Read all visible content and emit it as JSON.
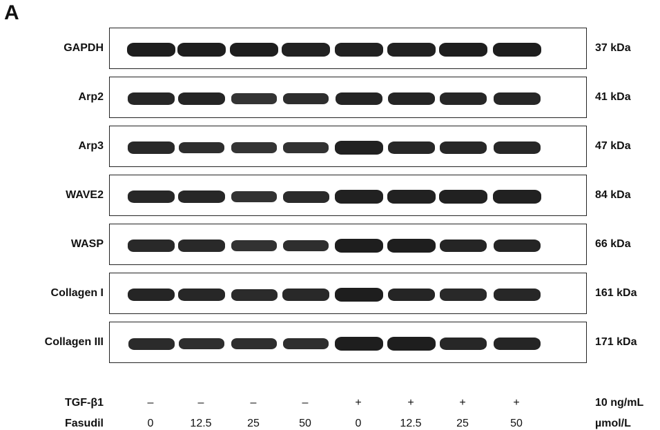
{
  "panel_letter": "A",
  "rows": [
    {
      "label": "GAPDH",
      "mw": "37 kDa",
      "intensity": [
        1.0,
        1.0,
        1.0,
        0.95,
        0.95,
        0.95,
        1.0,
        1.0
      ]
    },
    {
      "label": "Arp2",
      "mw": "41 kDa",
      "intensity": [
        0.85,
        0.9,
        0.6,
        0.7,
        0.9,
        0.9,
        0.85,
        0.85
      ]
    },
    {
      "label": "Arp3",
      "mw": "47 kDa",
      "intensity": [
        0.8,
        0.7,
        0.6,
        0.65,
        0.95,
        0.85,
        0.85,
        0.85
      ]
    },
    {
      "label": "WAVE2",
      "mw": "84 kDa",
      "intensity": [
        0.85,
        0.85,
        0.65,
        0.75,
        0.95,
        0.95,
        0.95,
        0.95
      ]
    },
    {
      "label": "WASP",
      "mw": "66 kDa",
      "intensity": [
        0.8,
        0.8,
        0.65,
        0.7,
        1.0,
        1.0,
        0.9,
        0.9
      ]
    },
    {
      "label": "Collagen I",
      "mw": "161 kDa",
      "intensity": [
        0.9,
        0.85,
        0.75,
        0.8,
        1.0,
        0.9,
        0.8,
        0.85
      ]
    },
    {
      "label": "Collagen III",
      "mw": "171 kDa",
      "intensity": [
        0.75,
        0.7,
        0.7,
        0.7,
        1.0,
        1.0,
        0.85,
        0.9
      ]
    }
  ],
  "conditions": [
    {
      "label": "TGF-β1",
      "values": [
        "–",
        "–",
        "–",
        "–",
        "+",
        "+",
        "+",
        "+"
      ],
      "unit": "10 ng/mL"
    },
    {
      "label": "Fasudil",
      "values": [
        "0",
        "12.5",
        "25",
        "50",
        "0",
        "12.5",
        "25",
        "50"
      ],
      "unit": "µmol/L"
    }
  ]
}
